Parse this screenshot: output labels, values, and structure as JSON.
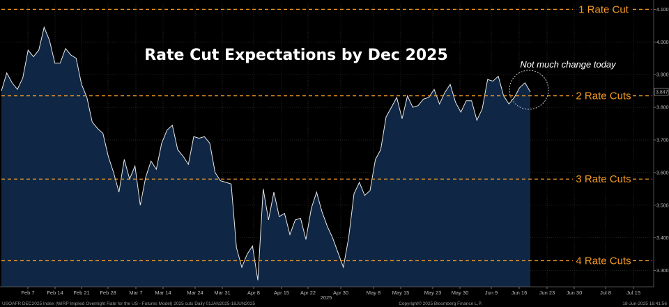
{
  "chart_data": {
    "type": "area",
    "title": "Rate Cut Expectations by Dec 2025",
    "annotation": "Not much change today",
    "last_value_label": "3.847",
    "ylim": [
      3.25,
      4.12
    ],
    "y_ticks": [
      "4.100",
      "4.000",
      "3.900",
      "3.800",
      "3.700",
      "3.600",
      "3.500",
      "3.400",
      "3.300"
    ],
    "y_tick_values": [
      4.1,
      4.0,
      3.9,
      3.8,
      3.7,
      3.6,
      3.5,
      3.4,
      3.3
    ],
    "x_ticks": [
      "Feb 7",
      "Feb 14",
      "Feb 21",
      "Feb 28",
      "Mar 7",
      "Mar 14",
      "Mar 24",
      "Mar 31",
      "Apr 8",
      "Apr 15",
      "Apr 22",
      "Apr 30",
      "May 8",
      "May 15",
      "May 23",
      "May 30",
      "Jun 9",
      "Jun 16",
      "Jun 23",
      "Jun 30",
      "Jul 8",
      "Jul 15"
    ],
    "year_label": "2025",
    "reference_lines": [
      {
        "label": "1 Rate Cut",
        "value": 4.1
      },
      {
        "label": "2 Rate Cuts",
        "value": 3.835
      },
      {
        "label": "3 Rate Cuts",
        "value": 3.58
      },
      {
        "label": "4 Rate Cuts",
        "value": 3.33
      }
    ],
    "series": [
      {
        "values": [
          3.85,
          3.905,
          3.875,
          3.855,
          3.89,
          3.975,
          3.955,
          3.975,
          4.045,
          4.005,
          3.935,
          3.935,
          3.98,
          3.96,
          3.95,
          3.87,
          3.83,
          3.755,
          3.735,
          3.72,
          3.65,
          3.6,
          3.54,
          3.64,
          3.58,
          3.62,
          3.5,
          3.585,
          3.635,
          3.61,
          3.69,
          3.73,
          3.745,
          3.67,
          3.65,
          3.625,
          3.71,
          3.705,
          3.71,
          3.69,
          3.6,
          3.575,
          3.57,
          3.565,
          3.37,
          3.31,
          3.35,
          3.375,
          3.27,
          3.55,
          3.455,
          3.54,
          3.465,
          3.475,
          3.41,
          3.455,
          3.46,
          3.395,
          3.49,
          3.54,
          3.48,
          3.435,
          3.4,
          3.355,
          3.31,
          3.4,
          3.535,
          3.57,
          3.53,
          3.545,
          3.64,
          3.67,
          3.77,
          3.8,
          3.83,
          3.765,
          3.835,
          3.8,
          3.805,
          3.825,
          3.83,
          3.855,
          3.81,
          3.845,
          3.87,
          3.815,
          3.785,
          3.82,
          3.82,
          3.76,
          3.795,
          3.885,
          3.88,
          3.895,
          3.835,
          3.81,
          3.83,
          3.86,
          3.875,
          3.847
        ]
      }
    ],
    "colors": {
      "line": "#e8e8e8",
      "fill": "#0f2744",
      "reference": "#f59a23",
      "grid": "#333333"
    }
  },
  "footer": {
    "left": "USOAFR DEC2025 Index (WIRP Implied Overnight Rate for the US - Futures Model) 2025 cuts  Daily 01JAN2025-18JUN2025",
    "center": "Copyright© 2025 Bloomberg Finance L.P.",
    "right": "18-Jun-2025 16:41:56"
  }
}
